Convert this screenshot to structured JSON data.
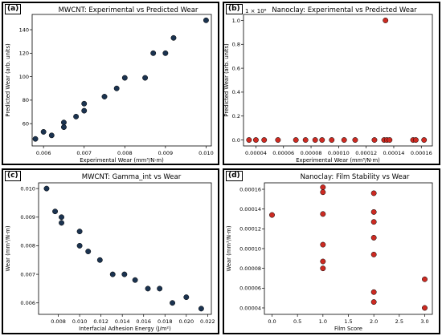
{
  "chart_data": [
    {
      "panel_id": "a",
      "label": "(a)",
      "type": "scatter",
      "title": "MWCNT: Experimental vs Predicted Wear",
      "xlabel": "Experimental Wear (mm³/N·m)",
      "ylabel": "Predicted Wear (arb. units)",
      "xlim": [
        0.00572,
        0.01013
      ],
      "ylim": [
        41,
        153
      ],
      "xticks": [
        0.006,
        0.007,
        0.008,
        0.009,
        0.01
      ],
      "xtick_labels": [
        "0.006",
        "0.007",
        "0.008",
        "0.009",
        "0.010"
      ],
      "yticks": [
        60,
        80,
        100,
        120,
        140
      ],
      "ytick_labels": [
        "60",
        "80",
        "100",
        "120",
        "140"
      ],
      "marker_color": "#1b3350",
      "grid": false,
      "points": [
        [
          0.0058,
          47
        ],
        [
          0.006,
          53
        ],
        [
          0.0062,
          50
        ],
        [
          0.0065,
          57
        ],
        [
          0.0065,
          61
        ],
        [
          0.0068,
          66
        ],
        [
          0.007,
          71
        ],
        [
          0.007,
          77
        ],
        [
          0.0075,
          83
        ],
        [
          0.0078,
          90
        ],
        [
          0.008,
          99
        ],
        [
          0.0085,
          99
        ],
        [
          0.0087,
          120
        ],
        [
          0.009,
          120
        ],
        [
          0.0092,
          133
        ],
        [
          0.01,
          148
        ]
      ]
    },
    {
      "panel_id": "b",
      "label": "(b)",
      "type": "scatter",
      "title": "Nanoclay: Experimental vs Predicted Wear",
      "xlabel": "Experimental Wear (mm³/N·m)",
      "ylabel": "Predicted Wear (arb. units)",
      "offset_text": "1 × 10⁶",
      "xlim": [
        3.1e-05,
        0.000168
      ],
      "ylim": [
        -0.05,
        1.05
      ],
      "xticks": [
        4e-05,
        6e-05,
        8e-05,
        0.0001,
        0.00012,
        0.00014,
        0.00016
      ],
      "xtick_labels": [
        "0.00004",
        "0.00006",
        "0.00008",
        "0.00010",
        "0.00012",
        "0.00014",
        "0.00016"
      ],
      "yticks": [
        0.0,
        0.2,
        0.4,
        0.6,
        0.8,
        1.0
      ],
      "ytick_labels": [
        "0.0",
        "0.2",
        "0.4",
        "0.6",
        "0.8",
        "1.0"
      ],
      "marker_color": "#cc2a22",
      "grid": false,
      "points": [
        [
          3.5e-05,
          0
        ],
        [
          4e-05,
          0
        ],
        [
          4.6e-05,
          0
        ],
        [
          5.6e-05,
          0
        ],
        [
          6.9e-05,
          0
        ],
        [
          7.6e-05,
          0
        ],
        [
          8.3e-05,
          0
        ],
        [
          8.8e-05,
          0
        ],
        [
          9.5e-05,
          0
        ],
        [
          0.000104,
          0
        ],
        [
          0.000112,
          0
        ],
        [
          0.000126,
          0
        ],
        [
          0.000133,
          0
        ],
        [
          0.000134,
          1.0
        ],
        [
          0.000135,
          0
        ],
        [
          0.000137,
          0
        ],
        [
          0.000154,
          0
        ],
        [
          0.000156,
          0
        ],
        [
          0.000162,
          0
        ]
      ]
    },
    {
      "panel_id": "c",
      "label": "(c)",
      "type": "scatter",
      "title": "MWCNT: Gamma_int vs Wear",
      "xlabel": "Interfacial Adhesion Energy (J/m²)",
      "ylabel": "Wear (mm³/N·m)",
      "xlim": [
        0.00615,
        0.02235
      ],
      "ylim": [
        0.0056,
        0.0102
      ],
      "xticks": [
        0.008,
        0.01,
        0.012,
        0.014,
        0.016,
        0.018,
        0.02,
        0.022
      ],
      "xtick_labels": [
        "0.008",
        "0.010",
        "0.012",
        "0.014",
        "0.016",
        "0.018",
        "0.020",
        "0.022"
      ],
      "yticks": [
        0.006,
        0.007,
        0.008,
        0.009,
        0.01
      ],
      "ytick_labels": [
        "0.006",
        "0.007",
        "0.008",
        "0.009",
        "0.010"
      ],
      "marker_color": "#1b3350",
      "grid": false,
      "points": [
        [
          0.0069,
          0.01
        ],
        [
          0.0077,
          0.0092
        ],
        [
          0.0083,
          0.009
        ],
        [
          0.0083,
          0.0088
        ],
        [
          0.01,
          0.0085
        ],
        [
          0.01,
          0.008
        ],
        [
          0.0108,
          0.0078
        ],
        [
          0.0119,
          0.0075
        ],
        [
          0.0131,
          0.007
        ],
        [
          0.0142,
          0.007
        ],
        [
          0.0152,
          0.0068
        ],
        [
          0.0164,
          0.0065
        ],
        [
          0.0175,
          0.0065
        ],
        [
          0.0187,
          0.006
        ],
        [
          0.02,
          0.0062
        ],
        [
          0.0214,
          0.0058
        ]
      ]
    },
    {
      "panel_id": "d",
      "label": "(d)",
      "type": "scatter",
      "title": "Nanoclay: Film Stability vs Wear",
      "xlabel": "Film Score",
      "ylabel": "Wear (mm³/N·m)",
      "xlim": [
        -0.15,
        3.15
      ],
      "ylim": [
        3.35e-05,
        0.0001665
      ],
      "xticks": [
        0.0,
        0.5,
        1.0,
        1.5,
        2.0,
        2.5,
        3.0
      ],
      "xtick_labels": [
        "0.0",
        "0.5",
        "1.0",
        "1.5",
        "2.0",
        "2.5",
        "3.0"
      ],
      "yticks": [
        4e-05,
        6e-05,
        8e-05,
        0.0001,
        0.00012,
        0.00014,
        0.00016
      ],
      "ytick_labels": [
        "0.00004",
        "0.00006",
        "0.00008",
        "0.00010",
        "0.00012",
        "0.00014",
        "0.00016"
      ],
      "marker_color": "#cc2a22",
      "grid": false,
      "points": [
        [
          0,
          0.000134
        ],
        [
          1,
          0.000162
        ],
        [
          1,
          0.000157
        ],
        [
          1,
          0.000135
        ],
        [
          1,
          0.000104
        ],
        [
          1,
          8.7e-05
        ],
        [
          1,
          8e-05
        ],
        [
          2,
          0.000156
        ],
        [
          2,
          0.000137
        ],
        [
          2,
          0.000127
        ],
        [
          2,
          0.000111
        ],
        [
          2,
          9.4e-05
        ],
        [
          2,
          5.6e-05
        ],
        [
          2,
          4.6e-05
        ],
        [
          3,
          6.9e-05
        ],
        [
          3,
          4e-05
        ]
      ]
    }
  ]
}
